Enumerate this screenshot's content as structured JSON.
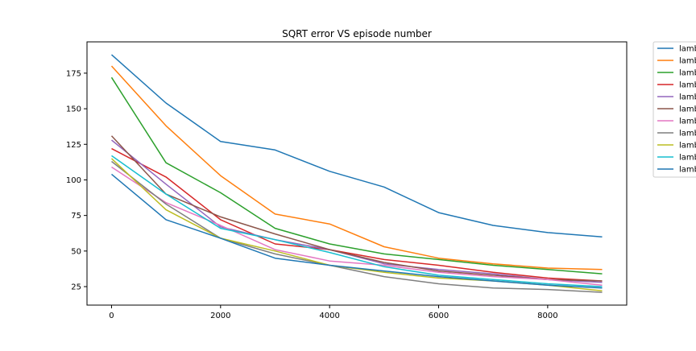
{
  "chart_data": {
    "type": "line",
    "title": "SQRT error VS episode number",
    "xlabel": "",
    "ylabel": "",
    "xlim": [
      -450,
      9450
    ],
    "ylim": [
      12,
      197
    ],
    "xticks": [
      0,
      2000,
      4000,
      6000,
      8000
    ],
    "xtick_labels": [
      "0",
      "2000",
      "4000",
      "6000",
      "8000"
    ],
    "yticks": [
      25,
      50,
      75,
      100,
      125,
      150,
      175
    ],
    "ytick_labels": [
      "25",
      "50",
      "75",
      "100",
      "125",
      "150",
      "175"
    ],
    "grid": false,
    "legend_position": "outside-top-right (clipped)",
    "x": [
      0,
      1000,
      2000,
      3000,
      4000,
      5000,
      6000,
      7000,
      8000,
      9000
    ],
    "series": [
      {
        "name": "lamb",
        "color": "#1f77b4",
        "values": [
          188,
          154,
          127,
          121,
          106,
          95,
          77,
          68,
          63,
          60
        ]
      },
      {
        "name": "lamb",
        "color": "#ff7f0e",
        "values": [
          180,
          138,
          103,
          76,
          69,
          53,
          45,
          41,
          38,
          37
        ]
      },
      {
        "name": "lamb",
        "color": "#2ca02c",
        "values": [
          172,
          112,
          91,
          66,
          55,
          48,
          44,
          40,
          37,
          34
        ]
      },
      {
        "name": "lamb",
        "color": "#d62728",
        "values": [
          122,
          102,
          72,
          55,
          51,
          44,
          40,
          35,
          31,
          29
        ]
      },
      {
        "name": "lamb",
        "color": "#9467bd",
        "values": [
          128,
          97,
          67,
          58,
          51,
          41,
          37,
          34,
          30,
          28
        ]
      },
      {
        "name": "lamb",
        "color": "#8c564b",
        "values": [
          131,
          90,
          74,
          62,
          51,
          42,
          36,
          33,
          30,
          29
        ]
      },
      {
        "name": "lamb",
        "color": "#e377c2",
        "values": [
          109,
          84,
          68,
          51,
          43,
          40,
          35,
          32,
          30,
          26
        ]
      },
      {
        "name": "lamb",
        "color": "#7f7f7f",
        "values": [
          113,
          83,
          59,
          48,
          40,
          32,
          27,
          24,
          23,
          21
        ]
      },
      {
        "name": "lamb",
        "color": "#bcbd22",
        "values": [
          115,
          79,
          59,
          50,
          40,
          35,
          31,
          29,
          26,
          22
        ]
      },
      {
        "name": "lamb",
        "color": "#17becf",
        "values": [
          117,
          90,
          66,
          58,
          49,
          39,
          33,
          30,
          27,
          25
        ]
      },
      {
        "name": "lamb",
        "color": "#1f77b4",
        "values": [
          104,
          72,
          59,
          45,
          40,
          36,
          32,
          29,
          26,
          24
        ]
      }
    ]
  }
}
